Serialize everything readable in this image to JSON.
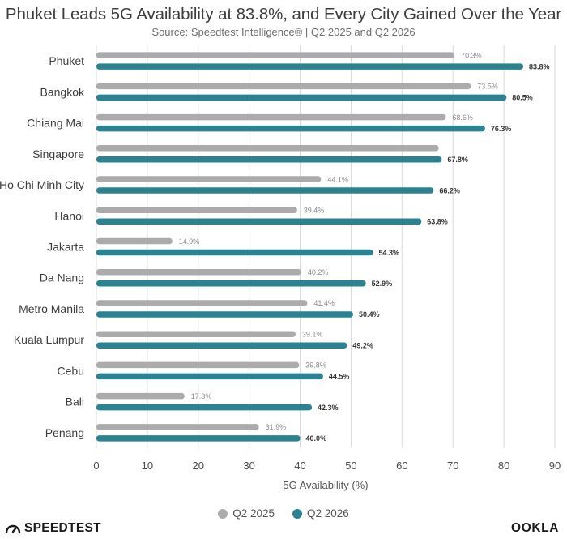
{
  "header": {
    "title": "Phuket Leads 5G Availability at 83.8%, and Every City Gained Over the Year",
    "subtitle": "Source: Speedtest Intelligence® | Q2 2025 and Q2 2026"
  },
  "legend": {
    "q2_2025": "Q2 2025",
    "q2_2026": "Q2 2026"
  },
  "brand": {
    "left": "SPEEDTEST",
    "right": "OOKLA"
  },
  "colors": {
    "q2_2025": "#ababab",
    "q2_2026": "#2b8391",
    "grid": "#d9d9d9",
    "text": "#3d3d3d"
  },
  "chart_data": {
    "type": "bar",
    "orientation": "horizontal",
    "title": "Phuket Leads 5G Availability at 83.8%, and Every City Gained Over the Year",
    "subtitle": "Source: Speedtest Intelligence® | Q2 2025 and Q2 2026",
    "xlabel": "5G Availability (%)",
    "ylabel": "",
    "xlim": [
      0,
      90
    ],
    "xticks": [
      0,
      10,
      20,
      30,
      40,
      50,
      60,
      70,
      80,
      90
    ],
    "grid": "vertical",
    "legend_position": "bottom",
    "categories": [
      "Phuket",
      "Bangkok",
      "Chiang Mai",
      "Singapore",
      "Ho Chi Minh City",
      "Hanoi",
      "Jakarta",
      "Da Nang",
      "Metro Manila",
      "Kuala Lumpur",
      "Cebu",
      "Bali",
      "Penang"
    ],
    "series": [
      {
        "name": "Q2 2025",
        "color": "#ababab",
        "values": [
          70.3,
          73.5,
          68.6,
          67.2,
          44.1,
          39.4,
          14.9,
          40.2,
          41.4,
          39.1,
          39.8,
          17.3,
          31.9
        ],
        "labels": [
          "70.3%",
          "73.5%",
          "68.6%",
          "",
          "44.1%",
          "39.4%",
          "14.9%",
          "40.2%",
          "41.4%",
          "39.1%",
          "39.8%",
          "17.3%",
          "31.9%"
        ]
      },
      {
        "name": "Q2 2026",
        "color": "#2b8391",
        "values": [
          83.8,
          80.5,
          76.3,
          67.8,
          66.2,
          63.8,
          54.3,
          52.9,
          50.4,
          49.2,
          44.5,
          42.3,
          40.0
        ],
        "labels": [
          "83.8%",
          "80.5%",
          "76.3%",
          "67.8%",
          "66.2%",
          "63.8%",
          "54.3%",
          "52.9%",
          "50.4%",
          "49.2%",
          "44.5%",
          "42.3%",
          "40.0%"
        ]
      }
    ]
  }
}
